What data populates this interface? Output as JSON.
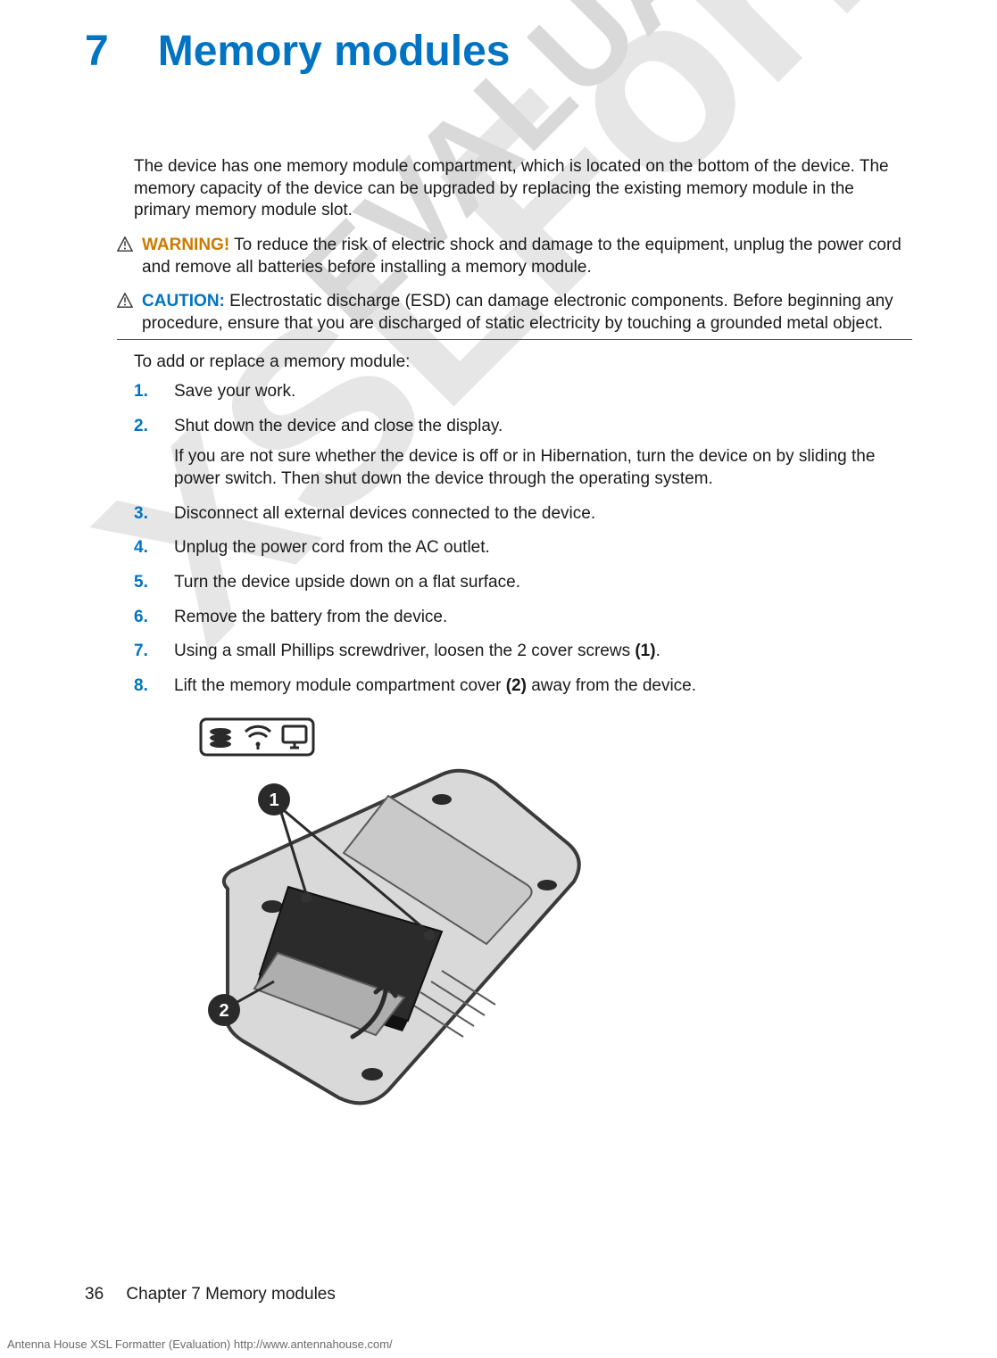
{
  "chapter": {
    "number": "7",
    "title": "Memory modules"
  },
  "intro": "The device has one memory module compartment, which is located on the bottom of the device. The memory capacity of the device can be upgraded by replacing the existing memory module in the primary memory module slot.",
  "alerts": {
    "warning": {
      "label": "WARNING!",
      "text": "To reduce the risk of electric shock and damage to the equipment, unplug the power cord and remove all batteries before installing a memory module.",
      "color": "#cc7a00"
    },
    "caution": {
      "label": "CAUTION:",
      "text": "Electrostatic discharge (ESD) can damage electronic components. Before beginning any procedure, ensure that you are discharged of static electricity by touching a grounded metal object.",
      "color": "#0073c2"
    }
  },
  "subintro": "To add or replace a memory module:",
  "steps": [
    {
      "text": "Save your work."
    },
    {
      "text": "Shut down the device and close the display.",
      "sub": "If you are not sure whether the device is off or in Hibernation, turn the device on by sliding the power switch. Then shut down the device through the operating system."
    },
    {
      "text": "Disconnect all external devices connected to the device."
    },
    {
      "text": "Unplug the power cord from the AC outlet."
    },
    {
      "text": "Turn the device upside down on a flat surface."
    },
    {
      "text": "Remove the battery from the device."
    },
    {
      "text_html": "Using a small Phillips screwdriver, loosen the 2 cover screws <b>(1)</b>."
    },
    {
      "text_html": "Lift the memory module compartment cover <b>(2)</b> away from the device."
    }
  ],
  "diagram": {
    "laptop_fill": "#d0d0d0",
    "laptop_stroke": "#5a5a5a",
    "cover_fill": "#2e2e2e",
    "callouts": [
      "1",
      "2"
    ],
    "badge_icons": {
      "hdd": "#2a2a2a",
      "wifi": "#2a2a2a",
      "screen": "#2a2a2a"
    }
  },
  "footer": {
    "page": "36",
    "chapter_label": "Chapter 7   Memory modules"
  },
  "formatter": "Antenna House XSL Formatter (Evaluation)  http://www.antennahouse.com/",
  "watermarks": {
    "large": "XSLFormatter",
    "small": "EVALUATION"
  },
  "colors": {
    "accent": "#0073c2",
    "warning": "#cc7a00",
    "text": "#1a1a1a",
    "watermark": "#e0e0e0"
  }
}
